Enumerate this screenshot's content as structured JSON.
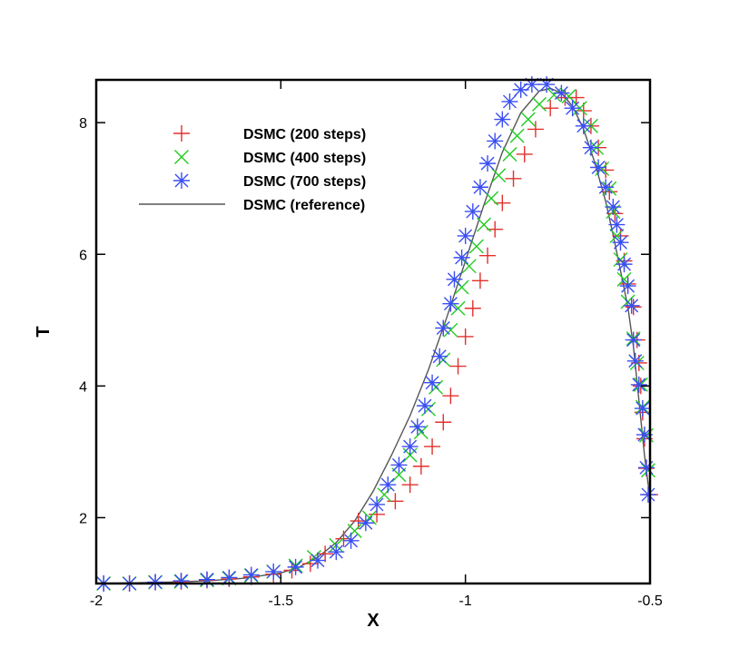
{
  "chart_data": {
    "type": "scatter",
    "xlabel": "X",
    "ylabel": "T",
    "xlim": [
      -2.0,
      -0.5
    ],
    "ylim": [
      1.0,
      8.65
    ],
    "xticks": [
      -2,
      -1.5,
      -1,
      -0.5
    ],
    "xtick_labels": [
      "-2",
      "-1.5",
      "-1",
      "-0.5"
    ],
    "yticks": [
      2,
      4,
      6,
      8
    ],
    "ytick_labels": [
      "2",
      "4",
      "6",
      "8"
    ],
    "grid": false,
    "legend_position": "top-left",
    "series": [
      {
        "name": "DSMC (200 steps)",
        "marker": "plus",
        "color": "#e0302e",
        "x": [
          -1.98,
          -1.91,
          -1.84,
          -1.77,
          -1.7,
          -1.64,
          -1.58,
          -1.52,
          -1.47,
          -1.42,
          -1.38,
          -1.33,
          -1.29,
          -1.24,
          -1.19,
          -1.15,
          -1.12,
          -1.09,
          -1.06,
          -1.04,
          -1.02,
          -1.0,
          -0.98,
          -0.96,
          -0.94,
          -0.92,
          -0.9,
          -0.87,
          -0.84,
          -0.81,
          -0.77,
          -0.73,
          -0.7,
          -0.68,
          -0.66,
          -0.64,
          -0.62,
          -0.61,
          -0.595,
          -0.58,
          -0.57,
          -0.56,
          -0.545,
          -0.535,
          -0.53,
          -0.525,
          -0.52,
          -0.515,
          -0.51,
          -0.5
        ],
        "y": [
          1.0,
          1.0,
          1.02,
          1.03,
          1.05,
          1.07,
          1.1,
          1.14,
          1.2,
          1.3,
          1.45,
          1.68,
          1.95,
          2.05,
          2.25,
          2.5,
          2.78,
          3.08,
          3.45,
          3.85,
          4.3,
          4.75,
          5.18,
          5.6,
          5.98,
          6.38,
          6.78,
          7.15,
          7.52,
          7.9,
          8.22,
          8.38,
          8.38,
          8.18,
          7.95,
          7.62,
          7.28,
          6.95,
          6.62,
          6.28,
          5.9,
          5.55,
          5.2,
          4.7,
          4.35,
          4.0,
          3.6,
          3.2,
          2.75,
          2.35
        ]
      },
      {
        "name": "DSMC (400 steps)",
        "marker": "cross",
        "color": "#1fcc1f",
        "x": [
          -1.98,
          -1.91,
          -1.84,
          -1.77,
          -1.7,
          -1.64,
          -1.58,
          -1.52,
          -1.46,
          -1.41,
          -1.35,
          -1.3,
          -1.26,
          -1.22,
          -1.18,
          -1.15,
          -1.12,
          -1.1,
          -1.08,
          -1.06,
          -1.04,
          -1.02,
          -1.01,
          -0.99,
          -0.97,
          -0.95,
          -0.93,
          -0.91,
          -0.88,
          -0.86,
          -0.83,
          -0.8,
          -0.76,
          -0.72,
          -0.69,
          -0.66,
          -0.645,
          -0.63,
          -0.61,
          -0.6,
          -0.59,
          -0.58,
          -0.57,
          -0.56,
          -0.545,
          -0.535,
          -0.525,
          -0.52,
          -0.51,
          -0.505
        ],
        "y": [
          1.0,
          1.0,
          1.02,
          1.03,
          1.05,
          1.08,
          1.12,
          1.18,
          1.27,
          1.4,
          1.58,
          1.8,
          2.0,
          2.35,
          2.65,
          2.95,
          3.3,
          3.65,
          3.98,
          4.4,
          4.85,
          5.18,
          5.5,
          5.82,
          6.12,
          6.45,
          6.85,
          7.2,
          7.52,
          7.8,
          8.05,
          8.28,
          8.42,
          8.4,
          8.22,
          7.95,
          7.62,
          7.3,
          7.0,
          6.65,
          6.28,
          5.92,
          5.62,
          5.28,
          4.72,
          4.35,
          4.02,
          3.68,
          3.25,
          2.72
        ]
      },
      {
        "name": "DSMC (700 steps)",
        "marker": "asterisk",
        "color": "#3a4ef2",
        "x": [
          -1.98,
          -1.91,
          -1.84,
          -1.77,
          -1.7,
          -1.64,
          -1.58,
          -1.52,
          -1.46,
          -1.4,
          -1.35,
          -1.31,
          -1.27,
          -1.24,
          -1.21,
          -1.18,
          -1.15,
          -1.13,
          -1.11,
          -1.09,
          -1.07,
          -1.06,
          -1.04,
          -1.03,
          -1.01,
          -1.0,
          -0.98,
          -0.96,
          -0.94,
          -0.92,
          -0.9,
          -0.88,
          -0.85,
          -0.82,
          -0.78,
          -0.74,
          -0.71,
          -0.68,
          -0.66,
          -0.64,
          -0.62,
          -0.6,
          -0.59,
          -0.58,
          -0.57,
          -0.56,
          -0.55,
          -0.545,
          -0.54,
          -0.53,
          -0.52,
          -0.515,
          -0.51,
          -0.505
        ],
        "y": [
          1.0,
          1.0,
          1.02,
          1.04,
          1.06,
          1.09,
          1.13,
          1.18,
          1.25,
          1.35,
          1.48,
          1.65,
          1.92,
          2.2,
          2.5,
          2.8,
          3.08,
          3.38,
          3.7,
          4.05,
          4.45,
          4.88,
          5.25,
          5.62,
          5.95,
          6.28,
          6.65,
          7.02,
          7.38,
          7.72,
          8.05,
          8.32,
          8.5,
          8.58,
          8.58,
          8.45,
          8.22,
          7.95,
          7.62,
          7.32,
          7.02,
          6.72,
          6.45,
          6.18,
          5.85,
          5.52,
          5.22,
          4.7,
          4.38,
          4.02,
          3.66,
          3.26,
          2.76,
          2.35
        ]
      },
      {
        "name": "DSMC (reference)",
        "marker": "line",
        "color": "#555555",
        "x": [
          -2.0,
          -1.9,
          -1.8,
          -1.7,
          -1.6,
          -1.5,
          -1.45,
          -1.4,
          -1.35,
          -1.3,
          -1.25,
          -1.2,
          -1.15,
          -1.1,
          -1.05,
          -1.0,
          -0.95,
          -0.9,
          -0.85,
          -0.8,
          -0.77,
          -0.74,
          -0.71,
          -0.68,
          -0.65,
          -0.62,
          -0.6,
          -0.58,
          -0.56,
          -0.545,
          -0.535,
          -0.525,
          -0.515,
          -0.505,
          -0.5
        ],
        "y": [
          1.0,
          1.01,
          1.02,
          1.04,
          1.08,
          1.16,
          1.25,
          1.4,
          1.62,
          1.95,
          2.4,
          2.95,
          3.55,
          4.25,
          5.05,
          5.9,
          6.75,
          7.55,
          8.15,
          8.48,
          8.52,
          8.45,
          8.25,
          7.9,
          7.4,
          6.8,
          6.3,
          5.75,
          5.2,
          4.6,
          4.05,
          3.5,
          2.95,
          2.5,
          2.35
        ]
      }
    ]
  }
}
